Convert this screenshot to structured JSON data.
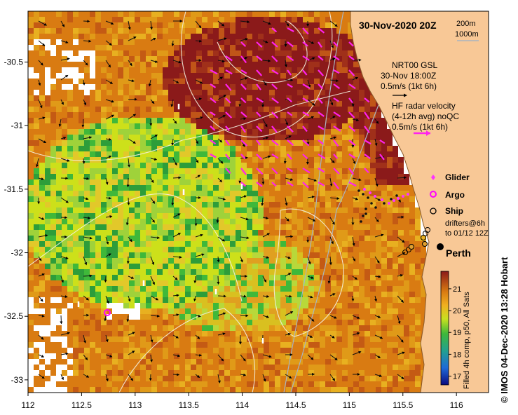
{
  "title": "30-Nov-2020 20Z",
  "isobath_labels": [
    "200m",
    "1000m"
  ],
  "model_block": {
    "line1": "NRT00 GSL",
    "line2": "30-Nov 18:00Z",
    "line3": "0.5m/s (1kt 6h)"
  },
  "radar_block": {
    "line1": "HF radar velocity",
    "line2": "(4-12h avg) noQC",
    "line3": "0.5m/s (1kt 6h)"
  },
  "legend": {
    "glider": "Glider",
    "argo": "Argo",
    "ship": "Ship",
    "drifters_line1": "drifters@6h",
    "drifters_line2": "to 01/12 12Z"
  },
  "city": "Perth",
  "colorbar": {
    "label": "Filled 4h comp, p50, All Sats",
    "ticks": [
      "21",
      "20",
      "19",
      "18",
      "17"
    ],
    "min": 16.6,
    "max": 21.8
  },
  "credit": "IMOS 04-Dec-2020 13:28 Hobart",
  "copyright_symbol": "©",
  "axes": {
    "x_ticks": [
      "112",
      "112.5",
      "113",
      "113.5",
      "114",
      "114.5",
      "115",
      "115.5",
      "116"
    ],
    "y_ticks": [
      "-30.5",
      "-31",
      "-31.5",
      "-32",
      "-32.5",
      "-33"
    ],
    "xlim": [
      112,
      116.3
    ],
    "ylim": [
      -33.1,
      -30.1
    ]
  },
  "colors": {
    "land": "#f8c896",
    "glider": "#ff33ff",
    "radar_arrow": "#ff22ee",
    "sst_hot": "#8b1a1a",
    "sst_warm": "#d97b12",
    "sst_mid": "#cde01a",
    "sst_cool": "#2d9d3a"
  }
}
